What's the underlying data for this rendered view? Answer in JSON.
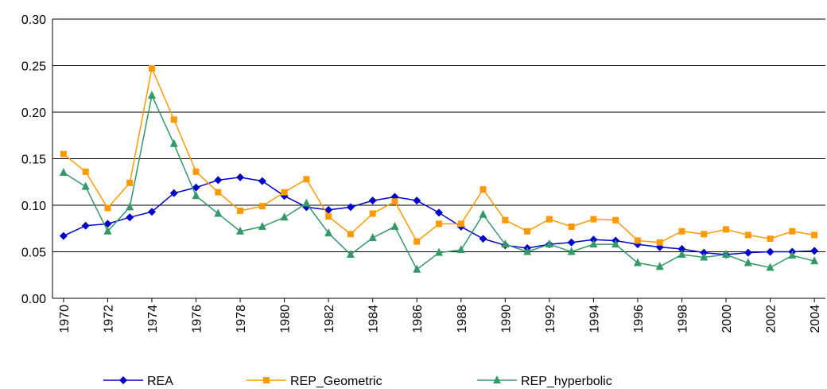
{
  "chart_data": {
    "type": "line",
    "x": [
      1970,
      1971,
      1972,
      1973,
      1974,
      1975,
      1976,
      1977,
      1978,
      1979,
      1980,
      1981,
      1982,
      1983,
      1984,
      1985,
      1986,
      1987,
      1988,
      1989,
      1990,
      1991,
      1992,
      1993,
      1994,
      1995,
      1996,
      1997,
      1998,
      1999,
      2000,
      2001,
      2002,
      2003,
      2004
    ],
    "xlim": [
      1969.5,
      2004.5
    ],
    "xticks": [
      1970,
      1972,
      1974,
      1976,
      1978,
      1980,
      1982,
      1984,
      1986,
      1988,
      1990,
      1992,
      1994,
      1996,
      1998,
      2000,
      2002,
      2004
    ],
    "ylim": [
      0,
      0.3
    ],
    "yticks": [
      {
        "value": 0,
        "label": "0.00"
      },
      {
        "value": 0.05,
        "label": "0.05"
      },
      {
        "value": 0.1,
        "label": "0.10"
      },
      {
        "value": 0.15,
        "label": "0.15"
      },
      {
        "value": 0.2,
        "label": "0.20"
      },
      {
        "value": 0.25,
        "label": "0.25"
      },
      {
        "value": 0.3,
        "label": "0.30"
      }
    ],
    "grid": true,
    "legend": "bottom",
    "series": [
      {
        "name": "REA",
        "color": "#0000cc",
        "marker": "diamond",
        "values": [
          0.067,
          0.078,
          0.08,
          0.087,
          0.093,
          0.113,
          0.119,
          0.127,
          0.13,
          0.126,
          0.11,
          0.098,
          0.095,
          0.098,
          0.105,
          0.109,
          0.105,
          0.092,
          0.077,
          0.064,
          0.057,
          0.054,
          0.058,
          0.06,
          0.063,
          0.062,
          0.058,
          0.055,
          0.053,
          0.049,
          0.047,
          0.049,
          0.05,
          0.05,
          0.051
        ]
      },
      {
        "name": "REP_Geometric",
        "color": "#ff9900",
        "marker": "square",
        "values": [
          0.155,
          0.136,
          0.097,
          0.124,
          0.247,
          0.192,
          0.136,
          0.114,
          0.094,
          0.099,
          0.114,
          0.128,
          0.088,
          0.069,
          0.091,
          0.104,
          0.061,
          0.08,
          0.08,
          0.117,
          0.084,
          0.072,
          0.085,
          0.077,
          0.085,
          0.084,
          0.062,
          0.06,
          0.072,
          0.069,
          0.074,
          0.068,
          0.064,
          0.072,
          0.068
        ]
      },
      {
        "name": "REP_hyperbolic",
        "color": "#339966",
        "marker": "triangle",
        "values": [
          0.135,
          0.12,
          0.072,
          0.098,
          0.218,
          0.166,
          0.11,
          0.091,
          0.072,
          0.077,
          0.087,
          0.102,
          0.07,
          0.047,
          0.065,
          0.077,
          0.031,
          0.049,
          0.052,
          0.09,
          0.058,
          0.05,
          0.058,
          0.05,
          0.058,
          0.058,
          0.038,
          0.034,
          0.047,
          0.044,
          0.047,
          0.038,
          0.033,
          0.046,
          0.04
        ]
      }
    ]
  }
}
